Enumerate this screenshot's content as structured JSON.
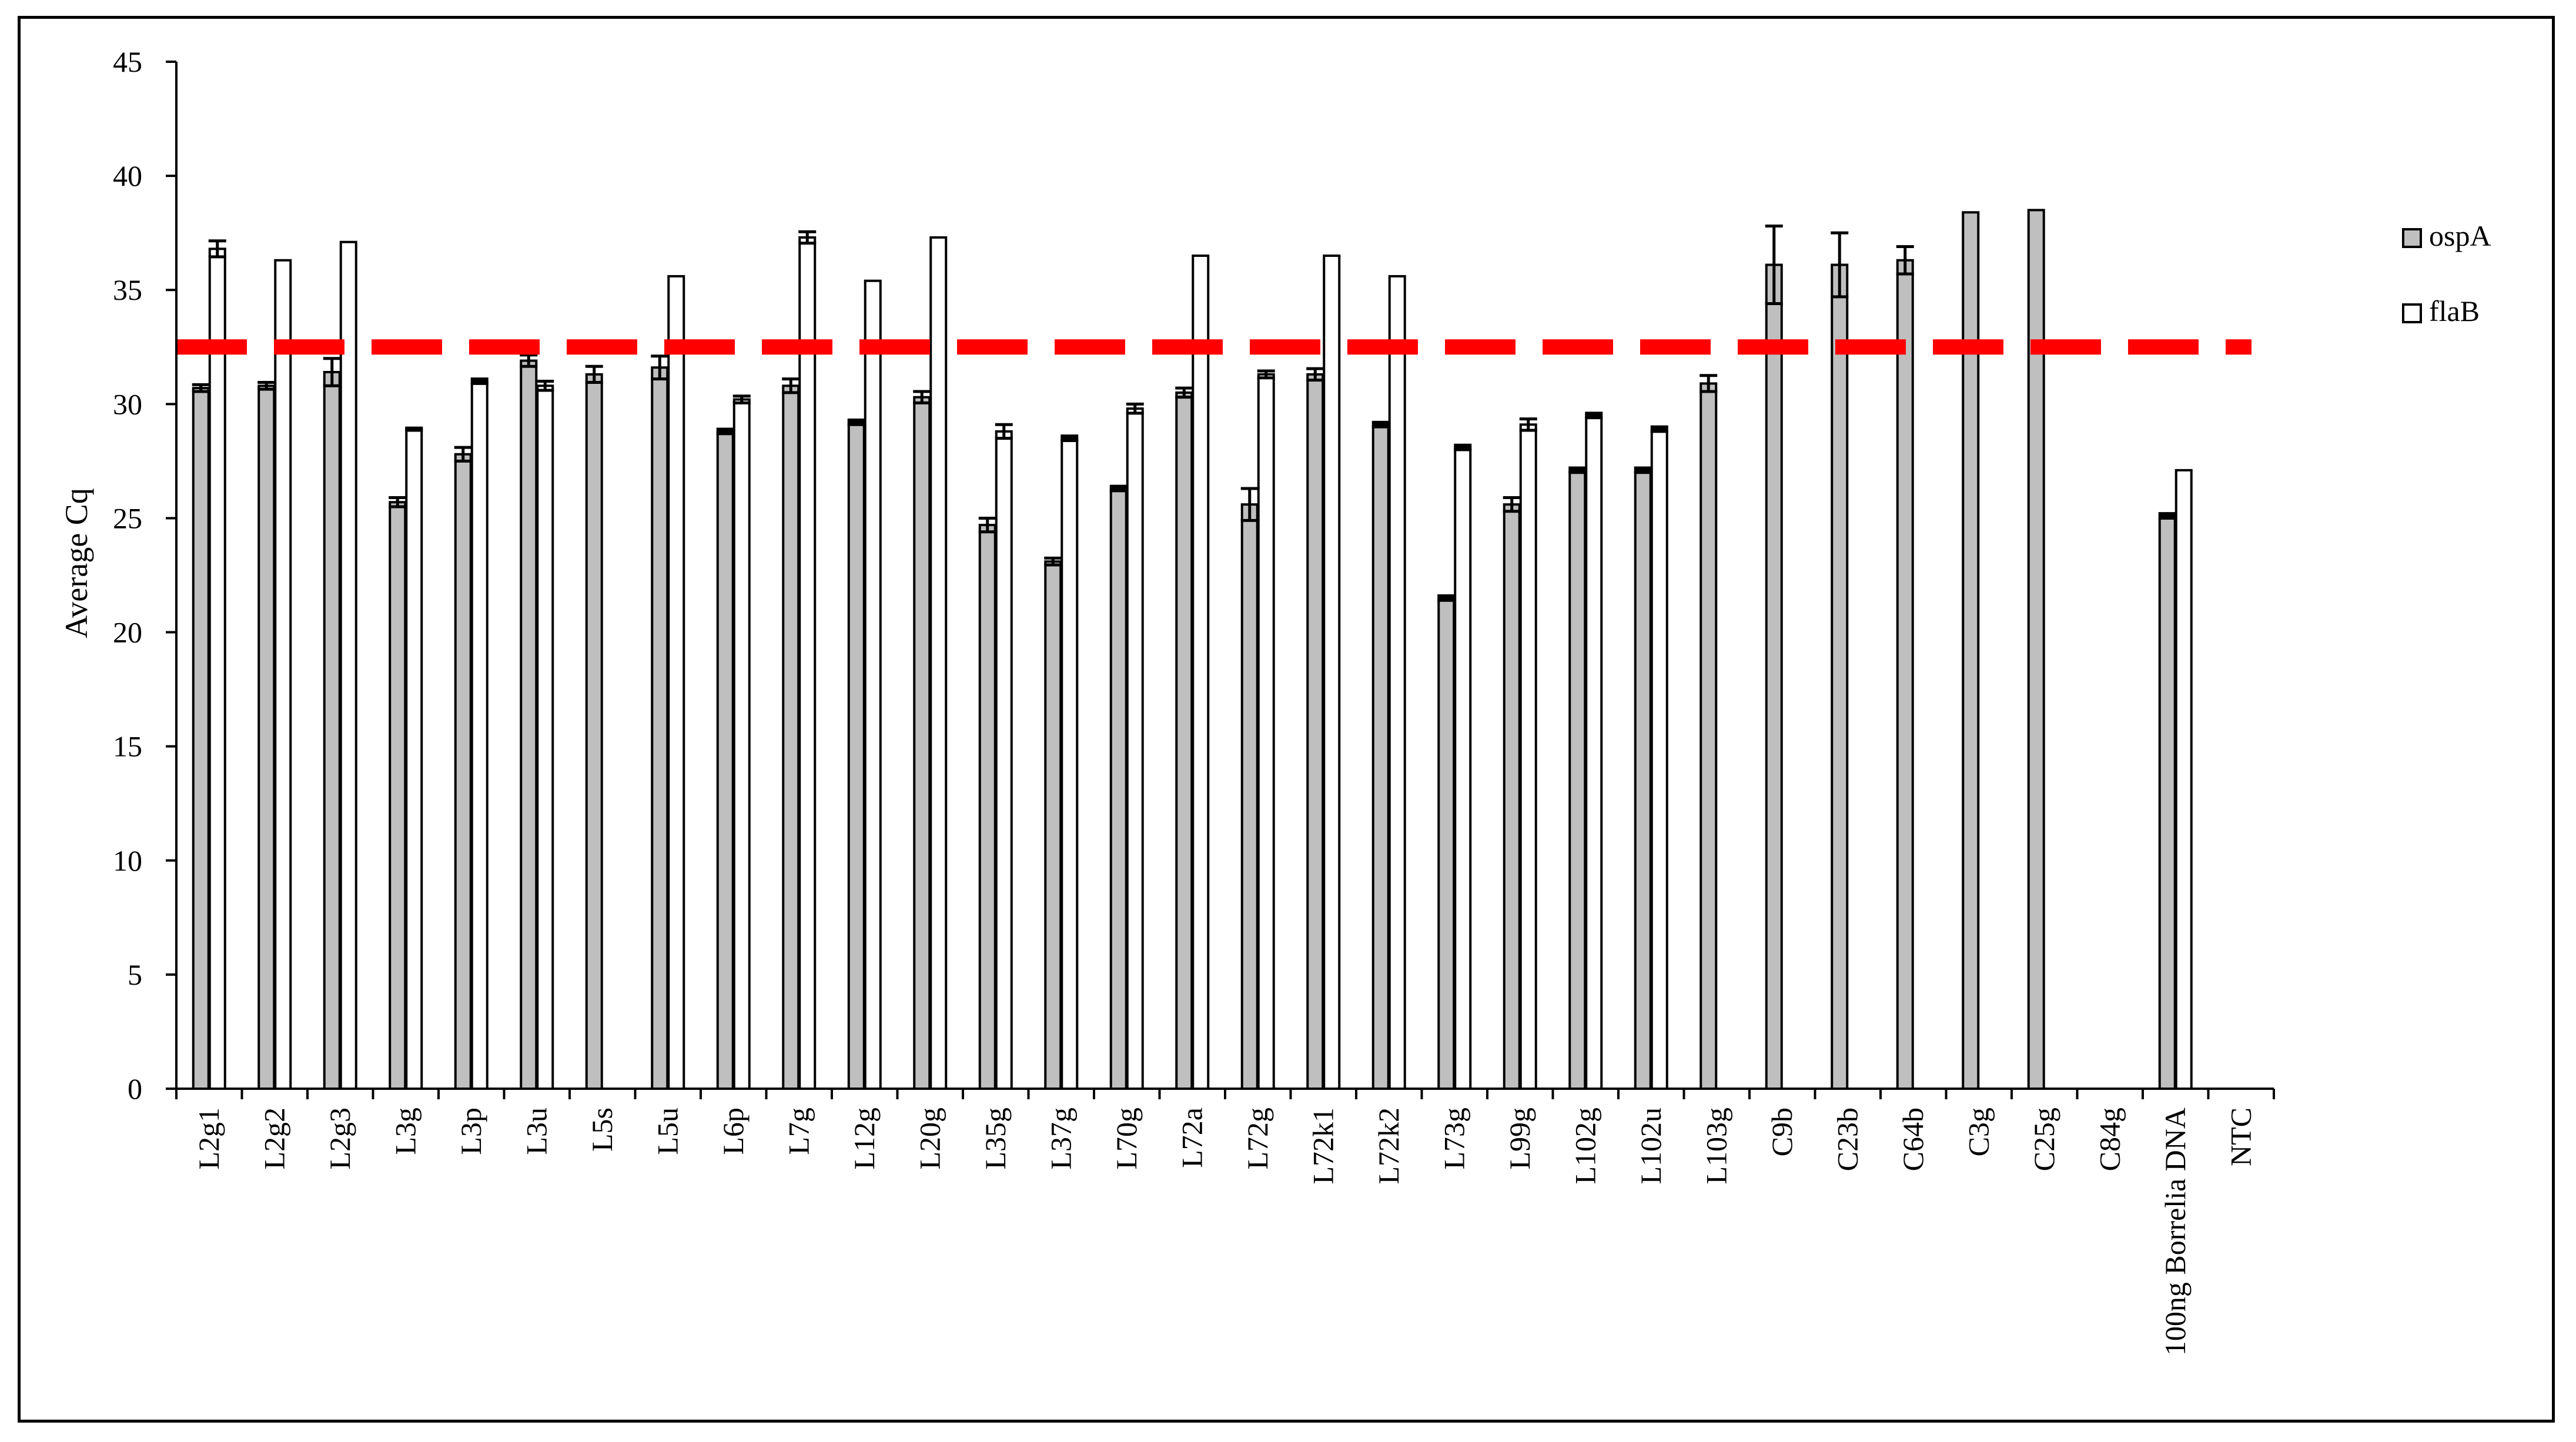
{
  "chart_data": {
    "type": "bar",
    "ylabel": "Average Cq",
    "xlabel": "",
    "ylim": [
      0,
      45
    ],
    "yticks": [
      0,
      5,
      10,
      15,
      20,
      25,
      30,
      35,
      40,
      45
    ],
    "grid": false,
    "legend_position": "right",
    "categories": [
      "L2g1",
      "L2g2",
      "L2g3",
      "L3g",
      "L3p",
      "L3u",
      "L5s",
      "L5u",
      "L6p",
      "L7g",
      "L12g",
      "L20g",
      "L35g",
      "L37g",
      "L70g",
      "L72a",
      "L72g",
      "L72k1",
      "L72k2",
      "L73g",
      "L99g",
      "L102g",
      "L102u",
      "L103g",
      "C9b",
      "C23b",
      "C64b",
      "C3g",
      "C25g",
      "C84g",
      "100ng Borrelia DNA",
      "NTC"
    ],
    "series": [
      {
        "name": "ospA",
        "color": "#bfbfbf",
        "values": [
          30.7,
          30.8,
          31.4,
          25.7,
          27.8,
          31.9,
          31.3,
          31.6,
          28.8,
          30.8,
          29.2,
          30.3,
          24.7,
          23.1,
          26.3,
          30.5,
          25.6,
          31.3,
          29.1,
          21.5,
          25.6,
          27.1,
          27.1,
          30.9,
          36.1,
          36.1,
          36.3,
          38.4,
          38.5,
          null,
          25.1,
          null
        ],
        "errors": [
          0.15,
          0.15,
          0.6,
          0.2,
          0.3,
          0.25,
          0.35,
          0.5,
          0.1,
          0.3,
          0.1,
          0.25,
          0.3,
          0.15,
          0.1,
          0.2,
          0.7,
          0.25,
          0.1,
          0.1,
          0.3,
          0.1,
          0.1,
          0.35,
          1.7,
          1.4,
          0.6,
          0,
          0,
          null,
          0.1,
          null
        ]
      },
      {
        "name": "flaB",
        "color": "#ffffff",
        "values": [
          36.8,
          36.3,
          37.1,
          28.9,
          31.0,
          30.8,
          null,
          35.6,
          30.2,
          37.3,
          35.4,
          37.3,
          28.8,
          28.5,
          29.8,
          36.5,
          31.3,
          36.5,
          35.6,
          28.1,
          29.1,
          29.5,
          28.9,
          null,
          null,
          null,
          null,
          null,
          null,
          null,
          27.1,
          null
        ],
        "errors": [
          0.35,
          0,
          0,
          0.05,
          0.1,
          0.2,
          null,
          0,
          0.15,
          0.25,
          0,
          0,
          0.3,
          0.1,
          0.2,
          0,
          0.15,
          0,
          0,
          0.1,
          0.25,
          0.1,
          0.1,
          null,
          null,
          null,
          null,
          null,
          null,
          null,
          0,
          null
        ]
      }
    ],
    "threshold": {
      "value": 32.5,
      "color": "#ff0000",
      "style": "dashed"
    }
  }
}
